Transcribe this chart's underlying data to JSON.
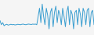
{
  "values": [
    -100,
    -300,
    -200,
    -350,
    -300,
    -280,
    -320,
    -300,
    -280,
    -300,
    -290,
    -310,
    -300,
    -280,
    -290,
    -300,
    -280,
    -270,
    -290,
    -300,
    -280,
    -270,
    -280,
    -290,
    -270,
    -280,
    -270,
    -300,
    100,
    500,
    -200,
    700,
    100,
    -300,
    500,
    150,
    -500,
    300,
    500,
    -400,
    300,
    600,
    -200,
    400,
    200,
    -300,
    500,
    100,
    -400,
    300,
    600,
    -300,
    400,
    200,
    -500,
    300,
    400,
    -300,
    500,
    200,
    -400,
    500,
    300,
    -300,
    400,
    500,
    -400,
    300,
    400,
    -300
  ],
  "line_color": "#3a9ed0",
  "bg_color": "#f5f5f5",
  "linewidth": 0.7,
  "ylim": [
    -800,
    900
  ]
}
